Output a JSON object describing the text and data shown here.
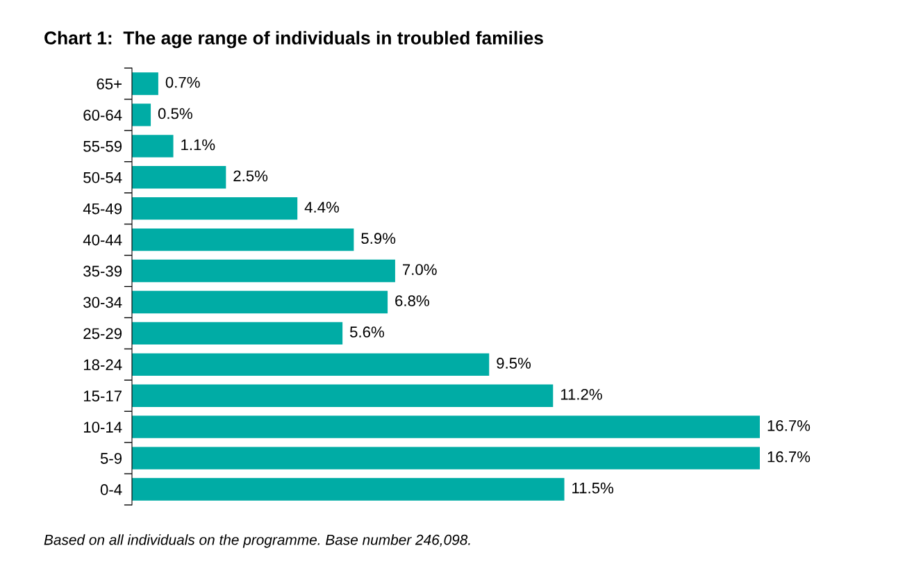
{
  "chart_data": {
    "type": "bar",
    "orientation": "horizontal",
    "title": "Chart 1:  The age range of individuals in troubled families",
    "categories": [
      "65+",
      "60-64",
      "55-59",
      "50-54",
      "45-49",
      "40-44",
      "35-39",
      "30-34",
      "25-29",
      "18-24",
      "15-17",
      "10-14",
      "5-9",
      "0-4"
    ],
    "values": [
      0.7,
      0.5,
      1.1,
      2.5,
      4.4,
      5.9,
      7.0,
      6.8,
      5.6,
      9.5,
      11.2,
      16.7,
      16.7,
      11.5
    ],
    "value_labels": [
      "0.7%",
      "0.5%",
      "1.1%",
      "2.5%",
      "4.4%",
      "5.9%",
      "7.0%",
      "6.8%",
      "5.6%",
      "9.5%",
      "11.2%",
      "16.7%",
      "16.7%",
      "11.5%"
    ],
    "color": "#00aca5",
    "grid": false,
    "legend": false,
    "annotations": [
      "Based on all individuals on the programme. Base number 246,098."
    ]
  }
}
